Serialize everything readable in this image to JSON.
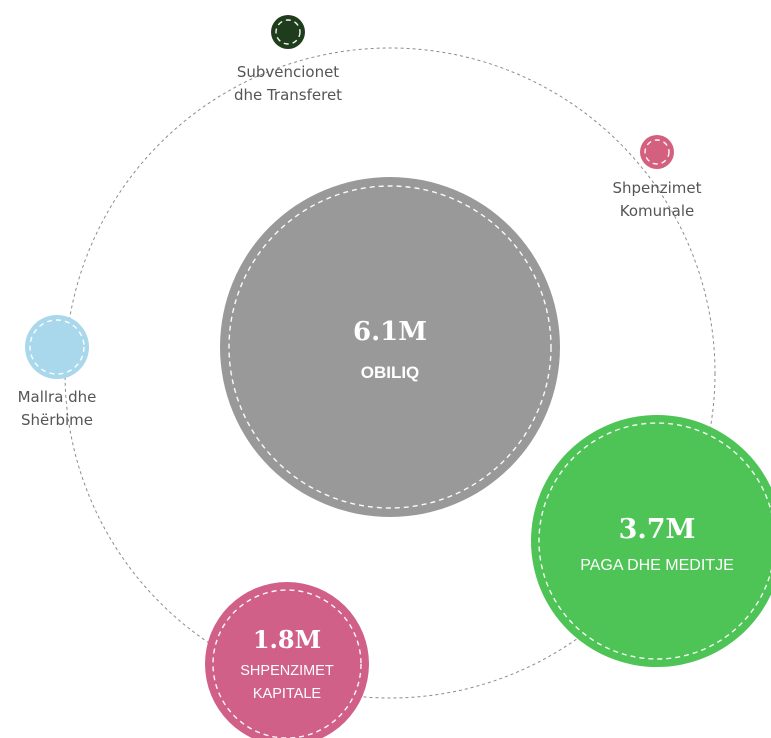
{
  "chart_data": {
    "type": "bubble",
    "center": {
      "name": "OBILIQ",
      "value_label": "6.1M",
      "color": "#999999"
    },
    "categories": [
      {
        "key": "kapitale",
        "lines": [
          "SHPENZIMET",
          "KAPITALE"
        ],
        "value_label": "1.8M",
        "color": "#d06087",
        "label_inside": true
      },
      {
        "key": "paga",
        "lines": [
          "PAGA DHE MEDITJE"
        ],
        "value_label": "3.7M",
        "color": "#4dc455",
        "label_inside": true
      },
      {
        "key": "komunale",
        "lines": [
          "Shpenzimet",
          "Komunale"
        ],
        "value_label": "",
        "color": "#d4607f",
        "label_inside": false
      },
      {
        "key": "subvencionet",
        "lines": [
          "Subvencionet",
          "dhe Transferet"
        ],
        "value_label": "",
        "color": "#1f3d1c",
        "label_inside": false
      },
      {
        "key": "mallra",
        "lines": [
          "Mallra dhe",
          "Shërbime"
        ],
        "value_label": "",
        "color": "#a9d8ec",
        "label_inside": false
      }
    ],
    "ring_color": "#8c8c8c"
  }
}
